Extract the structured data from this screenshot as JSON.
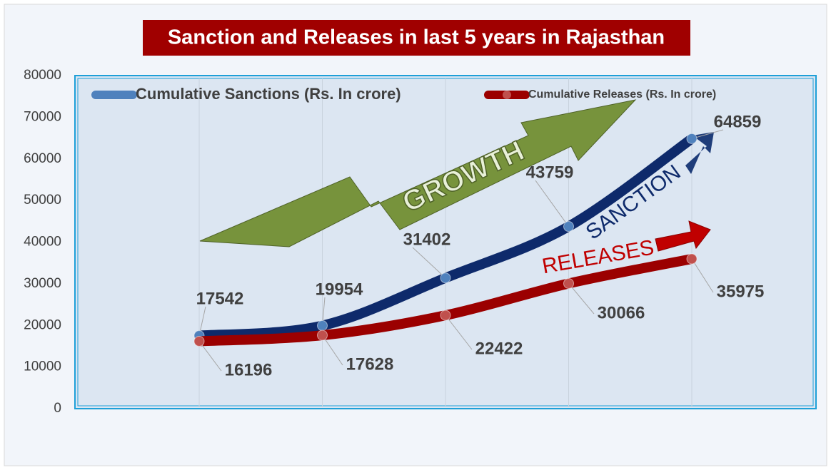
{
  "chart_data": {
    "type": "line",
    "title": "Sanction and Releases in last 5 years in Rajasthan",
    "categories": [
      null,
      null,
      null,
      null,
      null
    ],
    "series": [
      {
        "name": "Cumulative Sanctions (Rs. In crore)",
        "color": "#0e2a6b",
        "marker_color": "#4f81bd",
        "values": [
          17542,
          19954,
          31402,
          43759,
          64859
        ]
      },
      {
        "name": "Cumulative Releases (Rs. In crore)",
        "color": "#9b0000",
        "marker_color": "#c0504d",
        "values": [
          16196,
          17628,
          22422,
          30066,
          35975
        ]
      }
    ],
    "ylim": [
      0,
      80000
    ],
    "yticks": [
      0,
      10000,
      20000,
      30000,
      40000,
      50000,
      60000,
      70000,
      80000
    ],
    "grid": true,
    "legend": "top",
    "annotations": [
      "GROWTH",
      "SANCTION",
      "RELEASES"
    ]
  }
}
